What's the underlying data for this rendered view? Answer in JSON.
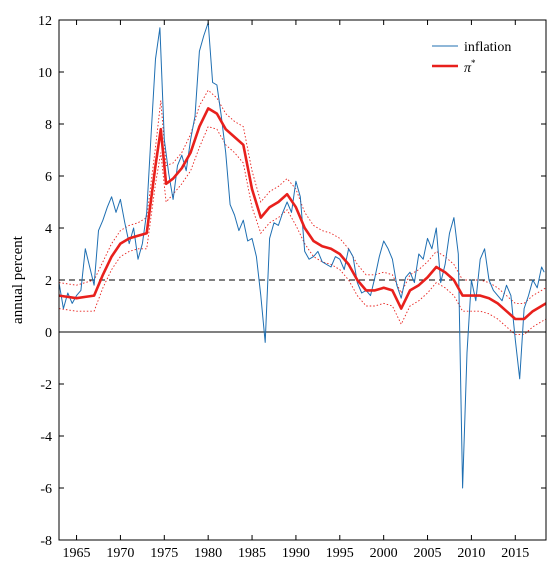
{
  "chart_data": {
    "type": "line",
    "title": "",
    "xlabel": "",
    "ylabel": "annual percent",
    "xlim": [
      1963,
      2018.5
    ],
    "ylim": [
      -8,
      12
    ],
    "x_ticks": [
      1965,
      1970,
      1975,
      1980,
      1985,
      1990,
      1995,
      2000,
      2005,
      2010,
      2015
    ],
    "y_ticks": [
      -8,
      -6,
      -4,
      -2,
      0,
      2,
      4,
      6,
      8,
      10,
      12
    ],
    "grid": false,
    "legend_position": "top-right",
    "colors": {
      "inflation": "#1f6fb2",
      "pi_star": "#e8201c",
      "band": "#e8201c",
      "target": "#000000",
      "zero": "#000000"
    },
    "reference_lines": [
      {
        "y": 2,
        "style": "dashed"
      },
      {
        "y": 0,
        "style": "solid"
      }
    ],
    "series": [
      {
        "name": "inflation",
        "x": [
          1963.0,
          1963.5,
          1964.0,
          1964.5,
          1965.0,
          1965.5,
          1966.0,
          1966.5,
          1967.0,
          1967.5,
          1968.0,
          1968.5,
          1969.0,
          1969.5,
          1970.0,
          1970.5,
          1971.0,
          1971.5,
          1972.0,
          1972.5,
          1973.0,
          1973.5,
          1974.0,
          1974.5,
          1975.0,
          1975.5,
          1976.0,
          1976.5,
          1977.0,
          1977.5,
          1978.0,
          1978.5,
          1979.0,
          1979.5,
          1980.0,
          1980.5,
          1981.0,
          1981.5,
          1982.0,
          1982.5,
          1983.0,
          1983.5,
          1984.0,
          1984.5,
          1985.0,
          1985.5,
          1986.0,
          1986.5,
          1987.0,
          1987.5,
          1988.0,
          1988.5,
          1989.0,
          1989.5,
          1990.0,
          1990.5,
          1991.0,
          1991.5,
          1992.0,
          1992.5,
          1993.0,
          1993.5,
          1994.0,
          1994.5,
          1995.0,
          1995.5,
          1996.0,
          1996.5,
          1997.0,
          1997.5,
          1998.0,
          1998.5,
          1999.0,
          1999.5,
          2000.0,
          2000.5,
          2001.0,
          2001.5,
          2002.0,
          2002.5,
          2003.0,
          2003.5,
          2004.0,
          2004.5,
          2005.0,
          2005.5,
          2006.0,
          2006.5,
          2007.0,
          2007.5,
          2008.0,
          2008.5,
          2009.0,
          2009.5,
          2010.0,
          2010.5,
          2011.0,
          2011.5,
          2012.0,
          2012.5,
          2013.0,
          2013.5,
          2014.0,
          2014.5,
          2015.0,
          2015.5,
          2016.0,
          2016.5,
          2017.0,
          2017.5,
          2018.0,
          2018.3
        ],
        "values": [
          1.9,
          0.9,
          1.5,
          1.1,
          1.4,
          1.6,
          3.2,
          2.5,
          1.8,
          3.9,
          4.3,
          4.8,
          5.2,
          4.6,
          5.1,
          4.2,
          3.4,
          4.0,
          2.8,
          3.4,
          4.6,
          7.6,
          10.5,
          11.7,
          7.4,
          6.1,
          5.1,
          6.4,
          6.8,
          6.2,
          7.4,
          8.3,
          10.8,
          11.4,
          11.9,
          9.6,
          9.5,
          8.3,
          6.9,
          4.9,
          4.5,
          3.9,
          4.3,
          3.5,
          3.6,
          2.9,
          1.4,
          -0.4,
          3.6,
          4.2,
          4.1,
          4.6,
          5.0,
          4.6,
          5.8,
          5.2,
          3.1,
          2.8,
          2.9,
          3.1,
          2.7,
          2.6,
          2.5,
          2.9,
          2.8,
          2.4,
          3.2,
          2.9,
          1.9,
          1.5,
          1.6,
          1.4,
          2.1,
          2.9,
          3.5,
          3.2,
          2.8,
          1.8,
          1.3,
          2.1,
          2.3,
          1.9,
          3.0,
          2.8,
          3.6,
          3.2,
          4.0,
          1.9,
          2.6,
          3.8,
          4.4,
          3.0,
          -6.0,
          -0.8,
          2.0,
          1.2,
          2.8,
          3.2,
          2.0,
          1.6,
          1.4,
          1.2,
          1.8,
          1.4,
          -0.3,
          -1.8,
          0.9,
          1.4,
          2.0,
          1.7,
          2.5,
          2.3
        ]
      },
      {
        "name": "π*",
        "x": [
          1963.0,
          1964.0,
          1965.0,
          1966.0,
          1967.0,
          1968.0,
          1969.0,
          1970.0,
          1971.0,
          1972.0,
          1973.0,
          1974.0,
          1974.6,
          1975.2,
          1976.0,
          1977.0,
          1978.0,
          1979.0,
          1980.0,
          1981.0,
          1982.0,
          1983.0,
          1984.0,
          1985.0,
          1986.0,
          1987.0,
          1988.0,
          1989.0,
          1990.0,
          1991.0,
          1992.0,
          1993.0,
          1994.0,
          1995.0,
          1996.0,
          1997.0,
          1998.0,
          1999.0,
          2000.0,
          2001.0,
          2002.0,
          2003.0,
          2004.0,
          2005.0,
          2006.0,
          2007.0,
          2008.0,
          2009.0,
          2010.0,
          2011.0,
          2012.0,
          2013.0,
          2014.0,
          2015.0,
          2016.0,
          2017.0,
          2018.0,
          2018.5
        ],
        "values": [
          1.4,
          1.35,
          1.3,
          1.35,
          1.4,
          2.2,
          2.9,
          3.4,
          3.6,
          3.7,
          3.8,
          6.4,
          7.8,
          5.7,
          5.9,
          6.3,
          6.9,
          7.9,
          8.6,
          8.4,
          7.8,
          7.5,
          7.2,
          5.5,
          4.4,
          4.8,
          5.0,
          5.3,
          4.8,
          4.0,
          3.5,
          3.3,
          3.2,
          3.0,
          2.6,
          2.0,
          1.6,
          1.6,
          1.7,
          1.6,
          0.9,
          1.6,
          1.8,
          2.1,
          2.5,
          2.3,
          2.0,
          1.4,
          1.4,
          1.4,
          1.3,
          1.1,
          0.8,
          0.5,
          0.5,
          0.8,
          1.0,
          1.1
        ]
      },
      {
        "name": "",
        "x": [
          1963.0,
          1964.0,
          1965.0,
          1966.0,
          1967.0,
          1968.0,
          1969.0,
          1970.0,
          1971.0,
          1972.0,
          1973.0,
          1974.0,
          1974.6,
          1975.2,
          1976.0,
          1977.0,
          1978.0,
          1979.0,
          1980.0,
          1981.0,
          1982.0,
          1983.0,
          1984.0,
          1985.0,
          1986.0,
          1987.0,
          1988.0,
          1989.0,
          1990.0,
          1991.0,
          1992.0,
          1993.0,
          1994.0,
          1995.0,
          1996.0,
          1997.0,
          1998.0,
          1999.0,
          2000.0,
          2001.0,
          2002.0,
          2003.0,
          2004.0,
          2005.0,
          2006.0,
          2007.0,
          2008.0,
          2009.0,
          2010.0,
          2011.0,
          2012.0,
          2013.0,
          2014.0,
          2015.0,
          2016.0,
          2017.0,
          2018.0,
          2018.5
        ],
        "values": [
          1.9,
          1.85,
          1.8,
          1.9,
          2.0,
          2.7,
          3.4,
          3.9,
          4.1,
          4.2,
          4.4,
          7.1,
          8.9,
          6.4,
          6.5,
          6.9,
          7.6,
          8.7,
          9.3,
          9.0,
          8.4,
          8.1,
          7.9,
          6.2,
          5.0,
          5.4,
          5.6,
          5.9,
          5.5,
          4.6,
          4.1,
          3.9,
          3.8,
          3.6,
          3.2,
          2.6,
          2.2,
          2.2,
          2.3,
          2.2,
          1.5,
          2.2,
          2.4,
          2.7,
          3.1,
          2.9,
          2.6,
          2.0,
          2.0,
          2.0,
          1.9,
          1.7,
          1.4,
          1.1,
          1.1,
          1.4,
          1.6,
          1.7
        ]
      },
      {
        "name": "",
        "x": [
          1963.0,
          1964.0,
          1965.0,
          1966.0,
          1967.0,
          1968.0,
          1969.0,
          1970.0,
          1971.0,
          1972.0,
          1973.0,
          1974.0,
          1974.6,
          1975.2,
          1976.0,
          1977.0,
          1978.0,
          1979.0,
          1980.0,
          1981.0,
          1982.0,
          1983.0,
          1984.0,
          1985.0,
          1986.0,
          1987.0,
          1988.0,
          1989.0,
          1990.0,
          1991.0,
          1992.0,
          1993.0,
          1994.0,
          1995.0,
          1996.0,
          1997.0,
          1998.0,
          1999.0,
          2000.0,
          2001.0,
          2002.0,
          2003.0,
          2004.0,
          2005.0,
          2006.0,
          2007.0,
          2008.0,
          2009.0,
          2010.0,
          2011.0,
          2012.0,
          2013.0,
          2014.0,
          2015.0,
          2016.0,
          2017.0,
          2018.0,
          2018.5
        ],
        "values": [
          0.9,
          0.85,
          0.8,
          0.8,
          0.8,
          1.7,
          2.4,
          2.9,
          3.1,
          3.2,
          3.2,
          5.7,
          6.9,
          5.0,
          5.3,
          5.7,
          6.2,
          7.1,
          7.9,
          7.8,
          7.2,
          6.9,
          6.5,
          4.8,
          3.8,
          4.2,
          4.4,
          4.7,
          4.1,
          3.4,
          2.9,
          2.7,
          2.6,
          2.4,
          2.0,
          1.4,
          1.0,
          1.0,
          1.1,
          1.0,
          0.3,
          1.0,
          1.2,
          1.5,
          1.9,
          1.7,
          1.4,
          0.8,
          0.8,
          0.8,
          0.7,
          0.5,
          0.2,
          -0.1,
          -0.1,
          0.2,
          0.4,
          0.5
        ]
      }
    ]
  }
}
